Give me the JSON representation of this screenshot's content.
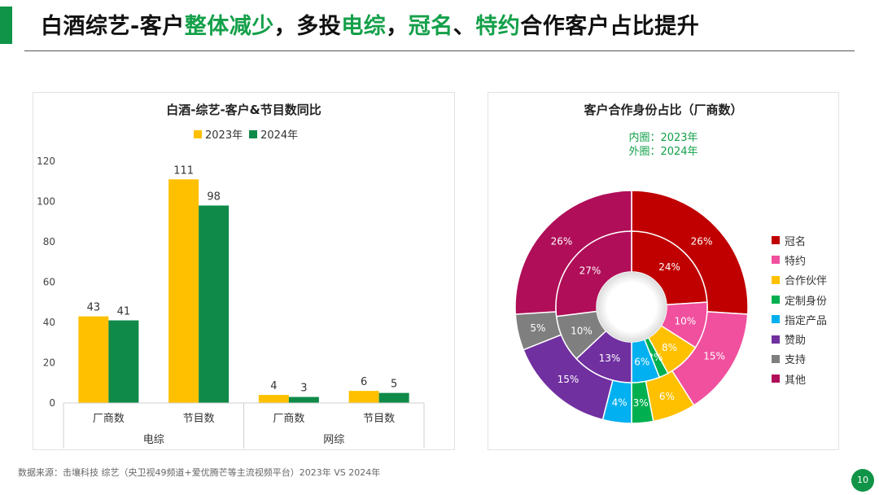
{
  "header": {
    "title_segments": [
      {
        "text": "白酒综艺-客户",
        "highlight": false
      },
      {
        "text": "整体减少",
        "highlight": true
      },
      {
        "text": "，多投",
        "highlight": false
      },
      {
        "text": "电综",
        "highlight": true
      },
      {
        "text": "，",
        "highlight": false
      },
      {
        "text": "冠名",
        "highlight": true
      },
      {
        "text": "、",
        "highlight": false
      },
      {
        "text": "特约",
        "highlight": true
      },
      {
        "text": "合作客户占比提升",
        "highlight": false
      }
    ]
  },
  "footer": {
    "source": "数据来源：击壤科技  综艺（央卫视49频道+爱优腾芒等主流视频平台）2023年 VS 2024年",
    "page_number": "10"
  },
  "colors": {
    "brand_green": "#109447",
    "highlight_green": "#14a04a",
    "bar_2023": "#ffc000",
    "bar_2024": "#0f8a48"
  },
  "chart_data": [
    {
      "type": "bar",
      "title": "白酒-综艺-客户&节目数同比",
      "categories": [
        "厂商数",
        "节目数",
        "厂商数",
        "节目数"
      ],
      "groups": [
        {
          "label": "电综",
          "categories": [
            "厂商数",
            "节目数"
          ]
        },
        {
          "label": "网综",
          "categories": [
            "厂商数",
            "节目数"
          ]
        }
      ],
      "series": [
        {
          "name": "2023年",
          "color": "#ffc000",
          "values": [
            43,
            111,
            4,
            6
          ]
        },
        {
          "name": "2024年",
          "color": "#0f8a48",
          "values": [
            41,
            98,
            3,
            5
          ]
        }
      ],
      "y_ticks": [
        0,
        20,
        40,
        60,
        80,
        100,
        120
      ],
      "ylim": [
        0,
        120
      ],
      "legend_position": "top"
    },
    {
      "type": "pie",
      "variant": "nested-donut",
      "title": "客户合作身份占比（厂商数）",
      "inner_note": "内圈：2023年",
      "outer_note": "外圈：2024年",
      "categories": [
        "冠名",
        "特约",
        "合作伙伴",
        "定制身份",
        "指定产品",
        "赞助",
        "支持",
        "其他"
      ],
      "colors": [
        "#c00000",
        "#f0509e",
        "#ffc000",
        "#00b050",
        "#00b0f0",
        "#7030a0",
        "#7f7f7f",
        "#b00e58"
      ],
      "inner_values": [
        24,
        10,
        8,
        2,
        6,
        13,
        10,
        27
      ],
      "outer_values": [
        26,
        15,
        6,
        3,
        4,
        15,
        5,
        26
      ],
      "value_suffix": "%",
      "legend_position": "right"
    }
  ]
}
